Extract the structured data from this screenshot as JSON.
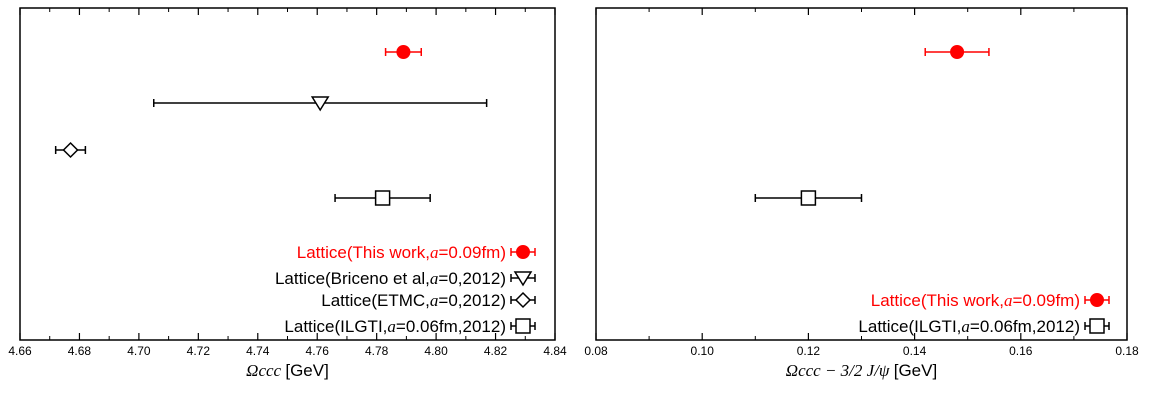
{
  "colors": {
    "highlight": "#ff0000",
    "default": "#000000"
  },
  "chart_data": [
    {
      "type": "scatter",
      "xlim": [
        4.66,
        4.84
      ],
      "xticks": [
        "4.66",
        "4.68",
        "4.70",
        "4.72",
        "4.74",
        "4.76",
        "4.78",
        "4.80",
        "4.82",
        "4.84"
      ],
      "xlabel": {
        "symbol": "Ωccc",
        "unit": "[GeV]"
      },
      "legend_position": "bottom-right",
      "series": [
        {
          "label_pre": "Lattice(This work,",
          "label_it": "a",
          "label_post": "=0.09fm)",
          "marker": "filled-circle",
          "color": "#ff0000",
          "value": 4.789,
          "err_lo": 0.006,
          "err_hi": 0.006
        },
        {
          "label_pre": "Lattice(Briceno et al,",
          "label_it": "a",
          "label_post": "=0,2012)",
          "marker": "open-triangle-down",
          "color": "#000000",
          "value": 4.761,
          "err_lo": 0.056,
          "err_hi": 0.056
        },
        {
          "label_pre": "Lattice(ETMC,",
          "label_it": "a",
          "label_post": "=0,2012)",
          "marker": "open-diamond",
          "color": "#000000",
          "value": 4.677,
          "err_lo": 0.005,
          "err_hi": 0.005
        },
        {
          "label_pre": "Lattice(ILGTI,",
          "label_it": "a",
          "label_post": "=0.06fm,2012)",
          "marker": "open-square",
          "color": "#000000",
          "value": 4.782,
          "err_lo": 0.016,
          "err_hi": 0.016
        }
      ]
    },
    {
      "type": "scatter",
      "xlim": [
        0.08,
        0.18
      ],
      "xticks": [
        "0.08",
        "0.10",
        "0.12",
        "0.14",
        "0.16",
        "0.18"
      ],
      "xlabel": {
        "symbol": "Ωccc − 3/2 J/ψ",
        "unit": "[GeV]"
      },
      "legend_position": "bottom-right",
      "series": [
        {
          "label_pre": "Lattice(This work,",
          "label_it": "a",
          "label_post": "=0.09fm)",
          "marker": "filled-circle",
          "color": "#ff0000",
          "value": 0.148,
          "err_lo": 0.006,
          "err_hi": 0.006
        },
        {
          "label_pre": "Lattice(ILGTI,",
          "label_it": "a",
          "label_post": "=0.06fm,2012)",
          "marker": "open-square",
          "color": "#000000",
          "value": 0.12,
          "err_lo": 0.01,
          "err_hi": 0.01
        }
      ]
    }
  ]
}
